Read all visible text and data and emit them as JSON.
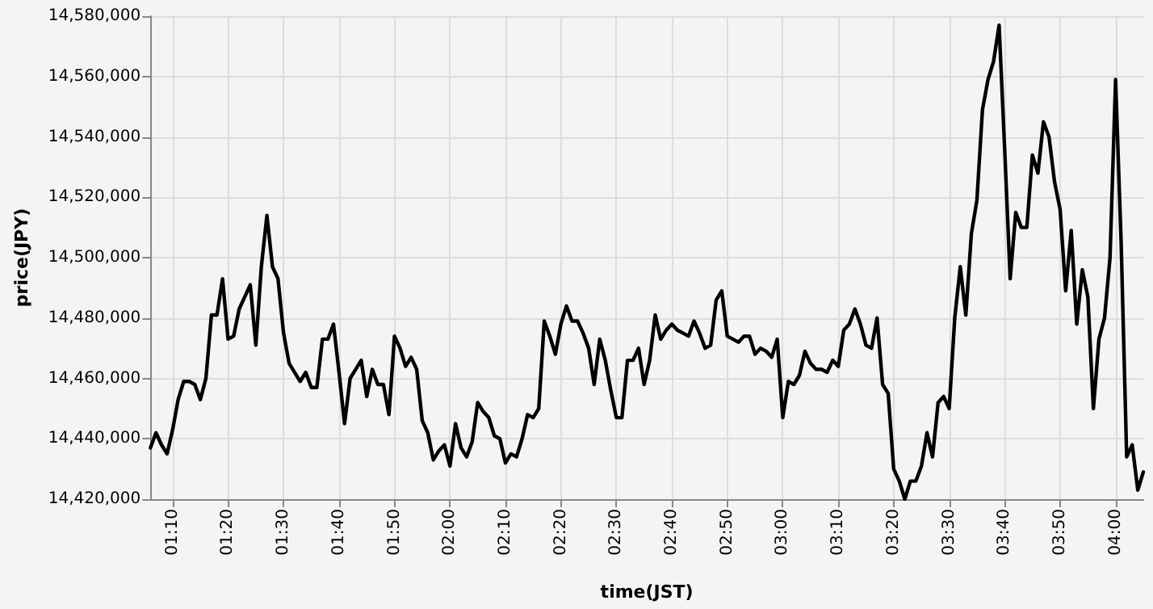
{
  "chart_data": {
    "type": "line",
    "xlabel": "time(JST)",
    "ylabel": "price(JPY)",
    "grid": true,
    "marker": "none",
    "line_style": "solid",
    "xlim": [
      1.1,
      4.0833
    ],
    "xticks": [
      {
        "value": 1.1667,
        "label": "01:10"
      },
      {
        "value": 1.3333,
        "label": "01:20"
      },
      {
        "value": 1.5,
        "label": "01:30"
      },
      {
        "value": 1.6667,
        "label": "01:40"
      },
      {
        "value": 1.8333,
        "label": "01:50"
      },
      {
        "value": 2,
        "label": "02:00"
      },
      {
        "value": 2.1667,
        "label": "02:10"
      },
      {
        "value": 2.3333,
        "label": "02:20"
      },
      {
        "value": 2.5,
        "label": "02:30"
      },
      {
        "value": 2.6667,
        "label": "02:40"
      },
      {
        "value": 2.8333,
        "label": "02:50"
      },
      {
        "value": 3,
        "label": "03:00"
      },
      {
        "value": 3.1667,
        "label": "03:10"
      },
      {
        "value": 3.3333,
        "label": "03:20"
      },
      {
        "value": 3.5,
        "label": "03:30"
      },
      {
        "value": 3.6667,
        "label": "03:40"
      },
      {
        "value": 3.8333,
        "label": "03:50"
      },
      {
        "value": 4,
        "label": "04:00"
      }
    ],
    "ylim": [
      14420000,
      14580000
    ],
    "yticks": [
      {
        "value": 14420000,
        "label": "14,420,000"
      },
      {
        "value": 14440000,
        "label": "14,440,000"
      },
      {
        "value": 14460000,
        "label": "14,460,000"
      },
      {
        "value": 14480000,
        "label": "14,480,000"
      },
      {
        "value": 14500000,
        "label": "14,500,000"
      },
      {
        "value": 14520000,
        "label": "14,520,000"
      },
      {
        "value": 14540000,
        "label": "14,540,000"
      },
      {
        "value": 14560000,
        "label": "14,560,000"
      },
      {
        "value": 14580000,
        "label": "14,580,000"
      }
    ],
    "x": [
      1.1,
      1.1167,
      1.1333,
      1.15,
      1.1667,
      1.1833,
      1.2,
      1.2167,
      1.2333,
      1.25,
      1.2667,
      1.2833,
      1.3,
      1.3167,
      1.3333,
      1.35,
      1.3667,
      1.3833,
      1.4,
      1.4167,
      1.4333,
      1.45,
      1.4667,
      1.4833,
      1.5,
      1.5167,
      1.5333,
      1.55,
      1.5667,
      1.5833,
      1.6,
      1.6167,
      1.6333,
      1.65,
      1.6667,
      1.6833,
      1.7,
      1.7167,
      1.7333,
      1.75,
      1.7667,
      1.7833,
      1.8,
      1.8167,
      1.8333,
      1.85,
      1.8667,
      1.8833,
      1.9,
      1.9167,
      1.9333,
      1.95,
      1.9667,
      1.9833,
      2,
      2.0167,
      2.0333,
      2.05,
      2.0667,
      2.0833,
      2.1,
      2.1167,
      2.1333,
      2.15,
      2.1667,
      2.1833,
      2.2,
      2.2167,
      2.2333,
      2.25,
      2.2667,
      2.2833,
      2.3,
      2.3167,
      2.3333,
      2.35,
      2.3667,
      2.3833,
      2.4,
      2.4167,
      2.4333,
      2.45,
      2.4667,
      2.4833,
      2.5,
      2.5167,
      2.5333,
      2.55,
      2.5667,
      2.5833,
      2.6,
      2.6167,
      2.6333,
      2.65,
      2.6667,
      2.6833,
      2.7,
      2.7167,
      2.7333,
      2.75,
      2.7667,
      2.7833,
      2.8,
      2.8167,
      2.8333,
      2.85,
      2.8667,
      2.8833,
      2.9,
      2.9167,
      2.9333,
      2.95,
      2.9667,
      2.9833,
      3,
      3.0167,
      3.0333,
      3.05,
      3.0667,
      3.0833,
      3.1,
      3.1167,
      3.1333,
      3.15,
      3.1667,
      3.1833,
      3.2,
      3.2167,
      3.2333,
      3.25,
      3.2667,
      3.2833,
      3.3,
      3.3167,
      3.3333,
      3.35,
      3.3667,
      3.3833,
      3.4,
      3.4167,
      3.4333,
      3.45,
      3.4667,
      3.4833,
      3.5,
      3.5167,
      3.5333,
      3.55,
      3.5667,
      3.5833,
      3.6,
      3.6167,
      3.6333,
      3.65,
      3.6667,
      3.6833,
      3.7,
      3.7167,
      3.7333,
      3.75,
      3.7667,
      3.7833,
      3.8,
      3.8167,
      3.8333,
      3.85,
      3.8667,
      3.8833,
      3.9,
      3.9167,
      3.9333,
      3.95,
      3.9667,
      3.9833,
      4,
      4.0167,
      4.0333,
      4.05,
      4.0667,
      4.0833
    ],
    "series": [
      {
        "color": "#000000",
        "values": [
          14437000,
          14442000,
          14438000,
          14435000,
          14443000,
          14453000,
          14459000,
          14459000,
          14458000,
          14453000,
          14460000,
          14481000,
          14481000,
          14493000,
          14473000,
          14474000,
          14483000,
          14487000,
          14491000,
          14471000,
          14497000,
          14514000,
          14497000,
          14493000,
          14475000,
          14465000,
          14462000,
          14459000,
          14462000,
          14457000,
          14457000,
          14473000,
          14473000,
          14478000,
          14462000,
          14445000,
          14460000,
          14463000,
          14466000,
          14454000,
          14463000,
          14458000,
          14458000,
          14448000,
          14474000,
          14470000,
          14464000,
          14467000,
          14463000,
          14446000,
          14442000,
          14433000,
          14436000,
          14438000,
          14431000,
          14445000,
          14437000,
          14434000,
          14439000,
          14452000,
          14449000,
          14447000,
          14441000,
          14440000,
          14432000,
          14435000,
          14434000,
          14440000,
          14448000,
          14447000,
          14450000,
          14479000,
          14474000,
          14468000,
          14478000,
          14484000,
          14479000,
          14479000,
          14475000,
          14470000,
          14458000,
          14473000,
          14466000,
          14456000,
          14447000,
          14447000,
          14466000,
          14466000,
          14470000,
          14458000,
          14466000,
          14481000,
          14473000,
          14476000,
          14478000,
          14476000,
          14475000,
          14474000,
          14479000,
          14475000,
          14470000,
          14471000,
          14486000,
          14489000,
          14474000,
          14473000,
          14472000,
          14474000,
          14474000,
          14468000,
          14470000,
          14469000,
          14467000,
          14473000,
          14447000,
          14459000,
          14458000,
          14461000,
          14469000,
          14465000,
          14463000,
          14463000,
          14462000,
          14466000,
          14464000,
          14476000,
          14478000,
          14483000,
          14478000,
          14471000,
          14470000,
          14480000,
          14458000,
          14455000,
          14430000,
          14426000,
          14420000,
          14426000,
          14426000,
          14431000,
          14442000,
          14434000,
          14452000,
          14454000,
          14450000,
          14480000,
          14497000,
          14481000,
          14508000,
          14519000,
          14549000,
          14559000,
          14565000,
          14577000,
          14536000,
          14493000,
          14515000,
          14510000,
          14510000,
          14534000,
          14528000,
          14545000,
          14540000,
          14525000,
          14516000,
          14489000,
          14509000,
          14478000,
          14496000,
          14487000,
          14450000,
          14473000,
          14480000,
          14500000,
          14559000,
          14505000,
          14434000,
          14438000,
          14423000,
          14429000
        ]
      }
    ]
  }
}
